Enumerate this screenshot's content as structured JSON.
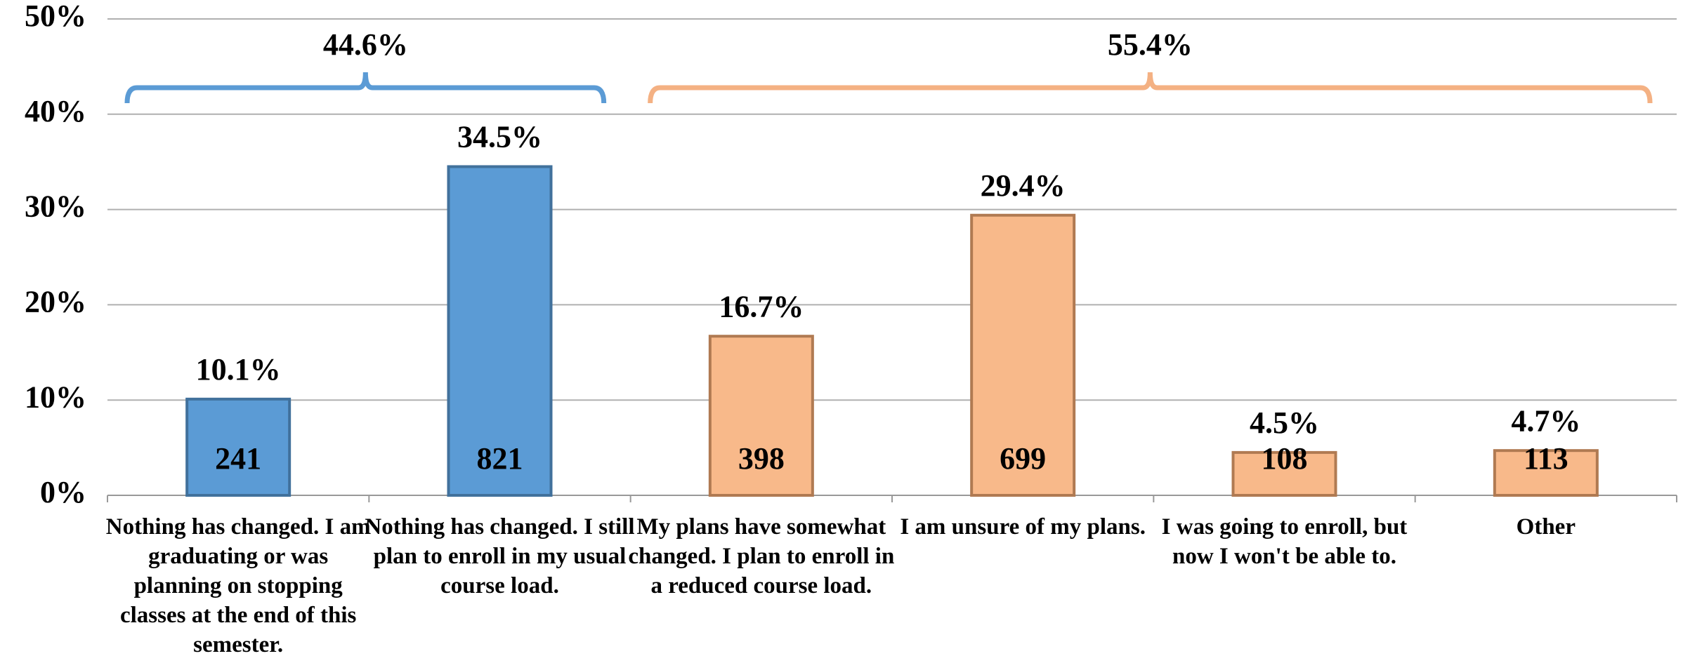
{
  "chart_data": {
    "type": "bar",
    "categories": [
      "Nothing has changed. I am graduating or was planning on stopping classes at the end of this semester.",
      "Nothing has changed. I still plan to enroll in my usual course load.",
      "My plans have somewhat changed. I plan to enroll in a reduced course load.",
      "I am unsure of my plans.",
      "I was going to enroll, but now I won't be able to.",
      "Other"
    ],
    "values": [
      10.1,
      34.5,
      16.7,
      29.4,
      4.5,
      4.7
    ],
    "value_labels": [
      "10.1%",
      "34.5%",
      "16.7%",
      "29.4%",
      "4.5%",
      "4.7%"
    ],
    "counts": [
      241,
      821,
      398,
      699,
      108,
      113
    ],
    "colors": [
      "#5b9bd5",
      "#5b9bd5",
      "#f8b98a",
      "#f8b98a",
      "#f8b98a",
      "#f8b98a"
    ],
    "groups": [
      {
        "value": 44.6,
        "label": "44.6%",
        "from": 0,
        "to": 1,
        "color": "#5b9bd5"
      },
      {
        "value": 55.4,
        "label": "55.4%",
        "from": 2,
        "to": 5,
        "color": "#f4b183"
      }
    ],
    "ylim": [
      0,
      50
    ],
    "yticks": [
      {
        "value": 0,
        "label": "0%"
      },
      {
        "value": 10,
        "label": "10%"
      },
      {
        "value": 20,
        "label": "20%"
      },
      {
        "value": 30,
        "label": "30%"
      },
      {
        "value": 40,
        "label": "40%"
      },
      {
        "value": 50,
        "label": "50%"
      }
    ],
    "grid": true
  }
}
